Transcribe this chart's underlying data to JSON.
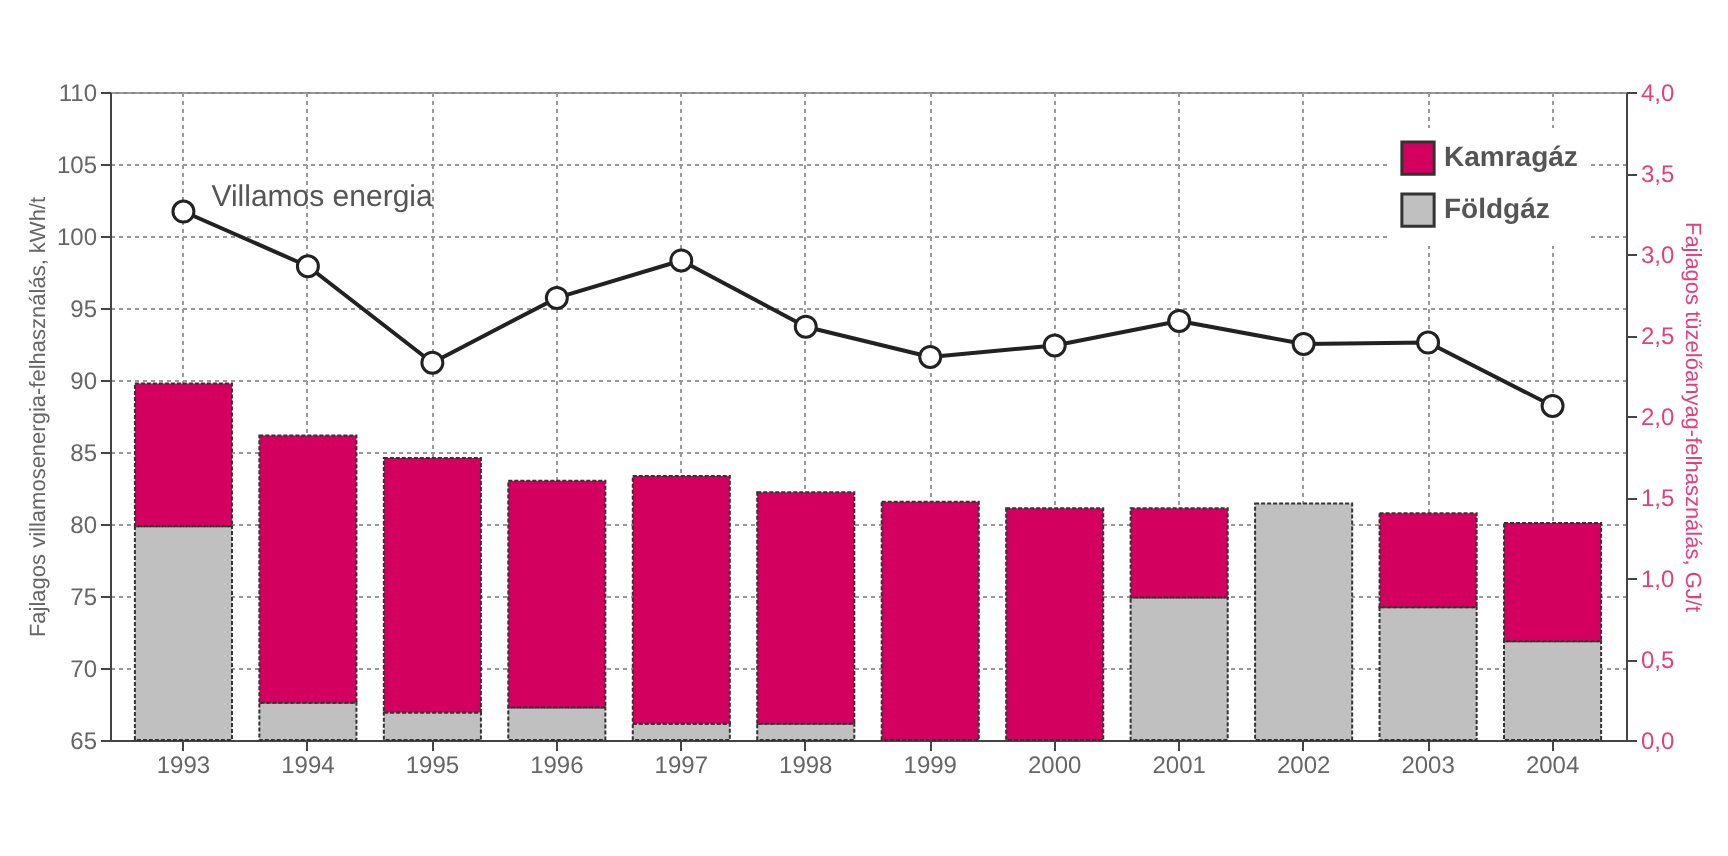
{
  "chart_data": {
    "type": "bar",
    "ylabel": "Fajlagos villamosenergia-felhasználás, kWh/t",
    "y2label": "Fajlagos tüzelőanyag-felhasználás, GJ/t",
    "categories": [
      "1993",
      "1994",
      "1995",
      "1996",
      "1997",
      "1998",
      "1999",
      "2000",
      "2001",
      "2002",
      "2003",
      "2004"
    ],
    "stacked": true,
    "grid": true,
    "legend": "top right",
    "marker": "circle",
    "ylim": [
      65,
      110
    ],
    "yticks": [
      65,
      70,
      75,
      80,
      85,
      90,
      95,
      100,
      105,
      110
    ],
    "y2lim": [
      0,
      4
    ],
    "y2ticks": [
      {
        "value": 0,
        "label": "0,0"
      },
      {
        "value": 0.5,
        "label": "0,5"
      },
      {
        "value": 1,
        "label": "1,0"
      },
      {
        "value": 1.5,
        "label": "1,5"
      },
      {
        "value": 2,
        "label": "2,0"
      },
      {
        "value": 2.5,
        "label": "2,5"
      },
      {
        "value": 3,
        "label": "3,0"
      },
      {
        "value": 3.5,
        "label": "3,5"
      },
      {
        "value": 4,
        "label": "4,0"
      }
    ],
    "series": [
      {
        "name": "Földgáz",
        "axis": "y2",
        "color": "#c0c0c0",
        "values": [
          1.32,
          0.23,
          0.17,
          0.2,
          0.1,
          0.1,
          null,
          null,
          0.88,
          1.46,
          0.82,
          0.61
        ]
      },
      {
        "name": "Kamragáz",
        "axis": "y2",
        "color": "#d4005f",
        "values": [
          0.88,
          1.65,
          1.57,
          1.4,
          1.53,
          1.43,
          1.47,
          1.43,
          0.55,
          null,
          0.58,
          0.73
        ]
      },
      {
        "name": "Villamos energia",
        "type": "line",
        "axis": "y",
        "color": "#222222",
        "values": [
          101.7,
          97.9,
          91.2,
          95.7,
          98.3,
          93.7,
          91.6,
          92.4,
          94.1,
          92.5,
          92.6,
          88.2
        ]
      }
    ]
  }
}
